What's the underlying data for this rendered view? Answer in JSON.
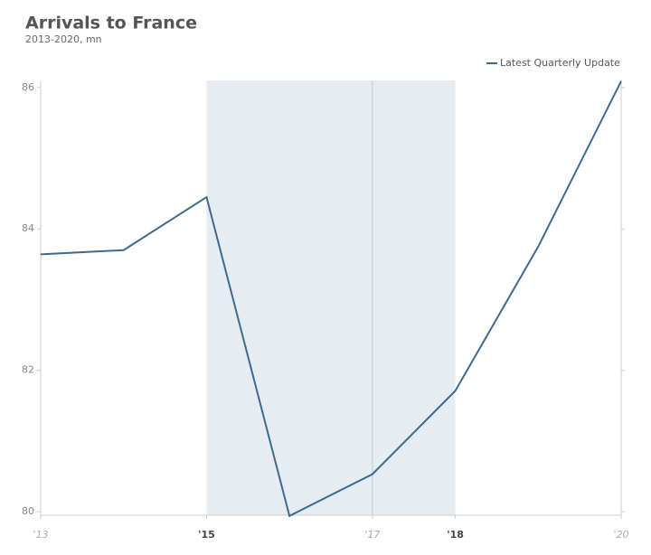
{
  "chart_data": {
    "type": "line",
    "title": "Arrivals to France",
    "subtitle": "2013-2020, mn",
    "x": [
      2013,
      2014,
      2015,
      2016,
      2017,
      2018,
      2019,
      2020
    ],
    "series": [
      {
        "name": "Latest Quarterly Update",
        "color": "#3d6a8f",
        "values": [
          83.64,
          83.7,
          84.45,
          79.94,
          80.53,
          81.71,
          83.75,
          86.09
        ]
      }
    ],
    "xlim": [
      2013,
      2020
    ],
    "xticks": [
      {
        "value": 2013,
        "label": "'13"
      },
      {
        "value": 2015,
        "label": "'15"
      },
      {
        "value": 2017,
        "label": "'17"
      },
      {
        "value": 2018,
        "label": "'18"
      },
      {
        "value": 2020,
        "label": "'20"
      }
    ],
    "ylim": [
      79.95,
      86.1
    ],
    "yticks": [
      80,
      82,
      84,
      86
    ],
    "highlight_range": [
      2015,
      2018
    ],
    "highlight_color": "#e6ecf1",
    "vline": 2017,
    "legend": "top-right"
  }
}
